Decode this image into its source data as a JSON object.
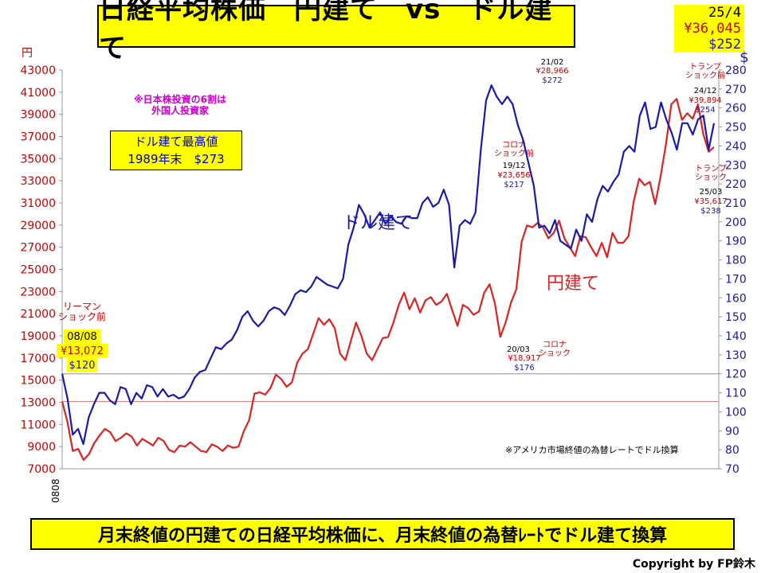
{
  "title": "日経平均株価　円建て　vs　ドル建て",
  "latest": {
    "date": "25/4",
    "yen": "¥36,045",
    "usd": "$252"
  },
  "note": [
    "※日本株投資の6割は",
    "外国人投資家"
  ],
  "max_box": [
    "ドル建て最高値",
    "1989年末　$273"
  ],
  "footnote": "※アメリカ市場終値の為替レートでドル換算",
  "bottom_caption": "月末終値の円建ての日経平均株価に、月末終値の為替ﾚｰﾄでドル建て換算",
  "copyright": "Copyright by FP鈴木",
  "colors": {
    "yen": "#dd2222",
    "usd": "#1a1aaa",
    "left_axis": "#cc0000",
    "right_axis": "#1a1aaa",
    "title_bg": "#ffff00"
  },
  "chart_data": {
    "type": "line",
    "left_axis_unit": "円",
    "right_axis_unit": "$",
    "left_ylim": [
      7000,
      43000
    ],
    "right_ylim": [
      70,
      280
    ],
    "left_ticks": [
      7000,
      9000,
      11000,
      13000,
      15000,
      17000,
      19000,
      21000,
      23000,
      25000,
      27000,
      29000,
      31000,
      33000,
      35000,
      37000,
      39000,
      41000,
      43000
    ],
    "right_ticks": [
      70,
      80,
      90,
      100,
      110,
      120,
      130,
      140,
      150,
      160,
      170,
      180,
      190,
      200,
      210,
      220,
      230,
      240,
      250,
      260,
      270,
      280
    ],
    "x_tick_label": "0808",
    "grid": false,
    "series": [
      {
        "name": "円建て",
        "axis": "left",
        "values": [
          13072,
          11200,
          8600,
          8800,
          7800,
          8300,
          9300,
          10000,
          10600,
          10300,
          9500,
          9800,
          10200,
          9900,
          9100,
          9700,
          9400,
          9100,
          9800,
          9500,
          8700,
          8500,
          9100,
          9000,
          9400,
          9000,
          8600,
          8500,
          9200,
          9000,
          8600,
          9100,
          8900,
          9000,
          10400,
          11400,
          13800,
          13900,
          13700,
          14300,
          15500,
          15100,
          14400,
          14800,
          16600,
          17400,
          17800,
          19200,
          20600,
          20000,
          20500,
          19700,
          17400,
          16800,
          18500,
          20200,
          19000,
          17400,
          16800,
          17800,
          18800,
          18900,
          20200,
          21800,
          22900,
          21400,
          22400,
          21100,
          22200,
          22500,
          21800,
          22100,
          22800,
          21300,
          19900,
          21800,
          21500,
          20900,
          21200,
          22900,
          23656,
          21900,
          18917,
          20200,
          22000,
          23200,
          27500,
          28966,
          28800,
          29200,
          28800,
          27800,
          28300,
          29400,
          27800,
          27000,
          26200,
          28000,
          27900,
          27000,
          26200,
          27400,
          26100,
          28300,
          27400,
          27400,
          28000,
          31200,
          33200,
          32600,
          32900,
          30900,
          33400,
          36300,
          39900,
          40400,
          38500,
          39100,
          38600,
          39894,
          37200,
          35617,
          36045
        ],
        "color": "#dd2222"
      },
      {
        "name": "ドル建て",
        "axis": "right",
        "values": [
          120,
          107,
          88,
          91,
          83,
          97,
          104,
          110,
          110,
          106,
          104,
          113,
          112,
          104,
          110,
          107,
          114,
          113,
          108,
          112,
          108,
          109,
          107,
          108,
          112,
          118,
          121,
          122,
          128,
          134,
          133,
          136,
          138,
          143,
          150,
          153,
          148,
          145,
          148,
          153,
          155,
          154,
          151,
          156,
          162,
          164,
          163,
          166,
          171,
          169,
          167,
          166,
          165,
          170,
          188,
          197,
          209,
          204,
          197,
          201,
          205,
          199,
          203,
          200,
          199,
          203,
          202,
          202,
          210,
          213,
          208,
          210,
          217,
          209,
          176,
          198,
          201,
          199,
          205,
          238,
          264,
          272,
          266,
          262,
          266,
          262,
          251,
          243,
          231,
          219,
          197,
          198,
          194,
          201,
          190,
          188,
          186,
          196,
          190,
          204,
          200,
          212,
          219,
          216,
          221,
          225,
          237,
          240,
          237,
          256,
          263,
          249,
          250,
          263,
          254,
          247,
          238,
          252,
          252,
          246,
          254,
          256,
          238,
          252
        ],
        "color": "#1a1aaa"
      }
    ],
    "reference_lines": [
      {
        "axis": "right",
        "value": 120,
        "color": "#8a8ad0"
      },
      {
        "axis": "left",
        "value": 13072,
        "color": "#e08080"
      }
    ],
    "annotations": [
      {
        "lines": [
          "リーマン",
          "ショック前"
        ],
        "color": "#cc0000"
      },
      {
        "lines": [
          "08/08"
        ],
        "color": "#000000"
      },
      {
        "lines": [
          "¥13,072"
        ],
        "color": "#cc0000"
      },
      {
        "lines": [
          "$120"
        ],
        "color": "#1a1aaa"
      },
      {
        "lines": [
          "コロナ",
          "ショック前"
        ],
        "color": "#cc0000"
      },
      {
        "lines": [
          "19/12"
        ],
        "color": "#000000"
      },
      {
        "lines": [
          "¥23,656"
        ],
        "color": "#cc0000"
      },
      {
        "lines": [
          "$217"
        ],
        "color": "#1a1aaa"
      },
      {
        "lines": [
          "21/02"
        ],
        "color": "#000000"
      },
      {
        "lines": [
          "¥28,966"
        ],
        "color": "#cc0000"
      },
      {
        "lines": [
          "$272"
        ],
        "color": "#1a1aaa"
      },
      {
        "lines": [
          "20/03"
        ],
        "color": "#000000"
      },
      {
        "lines": [
          "コロナ",
          "ショック"
        ],
        "color": "#cc0000"
      },
      {
        "lines": [
          "¥18,917"
        ],
        "color": "#cc0000"
      },
      {
        "lines": [
          "$176"
        ],
        "color": "#1a1aaa"
      },
      {
        "lines": [
          "トランプ",
          "ショック前"
        ],
        "color": "#cc0000"
      },
      {
        "lines": [
          "24/12"
        ],
        "color": "#000000"
      },
      {
        "lines": [
          "¥39,894"
        ],
        "color": "#cc0000"
      },
      {
        "lines": [
          "$254"
        ],
        "color": "#1a1aaa"
      },
      {
        "lines": [
          "トランプ",
          "ショック"
        ],
        "color": "#cc0000"
      },
      {
        "lines": [
          "25/03"
        ],
        "color": "#000000"
      },
      {
        "lines": [
          "¥35,617"
        ],
        "color": "#cc0000"
      },
      {
        "lines": [
          "$238"
        ],
        "color": "#1a1aaa"
      }
    ]
  }
}
